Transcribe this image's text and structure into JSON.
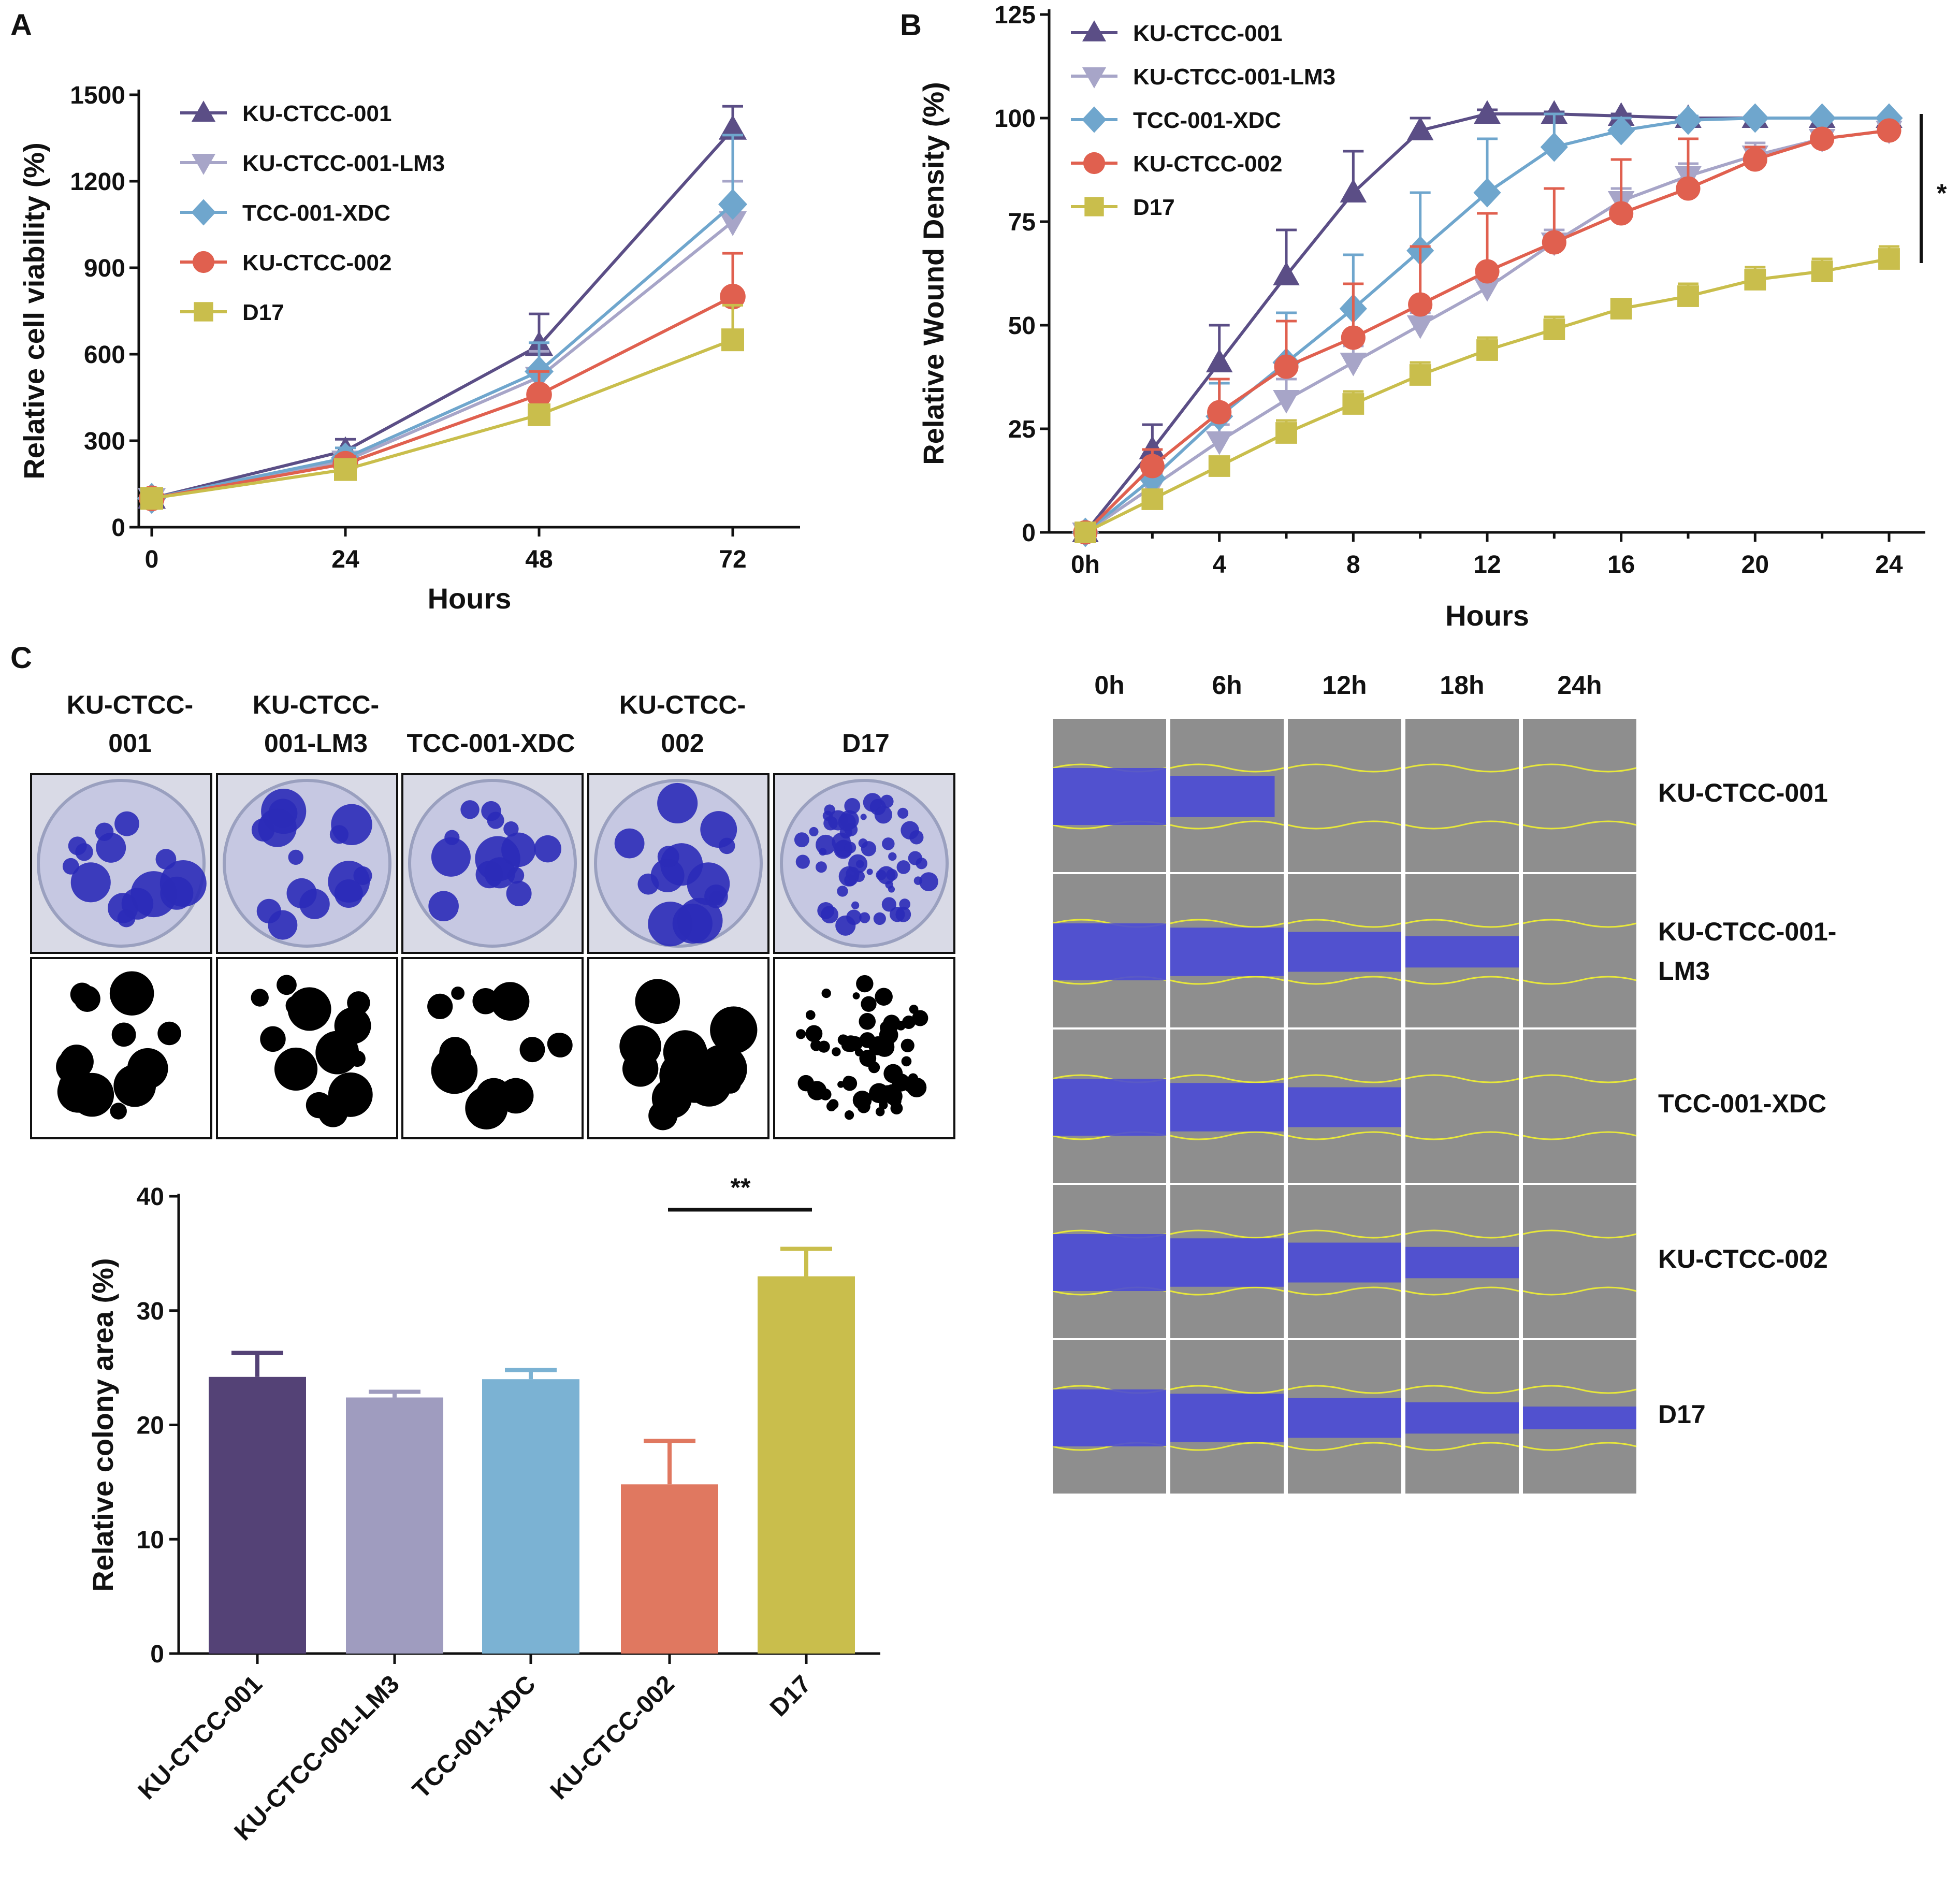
{
  "panels": {
    "A": "A",
    "B": "B",
    "C": "C"
  },
  "chart_data": [
    {
      "id": "A",
      "type": "line",
      "xlabel": "Hours",
      "ylabel": "Relative cell viability (%)",
      "x": [
        0,
        24,
        48,
        72
      ],
      "xticks": [
        "0",
        "24",
        "48",
        "72"
      ],
      "yticks": [
        "0",
        "300",
        "600",
        "900",
        "1200",
        "1500"
      ],
      "ylim": [
        0,
        1500
      ],
      "series": [
        {
          "name": "KU-CTCC-001",
          "marker": "triangle-up",
          "color": "#5b4e86",
          "values": [
            100,
            265,
            630,
            1380
          ],
          "errors": [
            0,
            40,
            110,
            80
          ]
        },
        {
          "name": "KU-CTCC-001-LM3",
          "marker": "triangle-down",
          "color": "#a7a5c8",
          "values": [
            100,
            230,
            520,
            1060
          ],
          "errors": [
            0,
            30,
            90,
            140
          ]
        },
        {
          "name": "TCC-001-XDC",
          "marker": "diamond",
          "color": "#6fa6cd",
          "values": [
            100,
            240,
            540,
            1120
          ],
          "errors": [
            0,
            35,
            100,
            240
          ]
        },
        {
          "name": "KU-CTCC-002",
          "marker": "circle",
          "color": "#e0604f",
          "values": [
            100,
            220,
            460,
            800
          ],
          "errors": [
            0,
            25,
            80,
            150
          ]
        },
        {
          "name": "D17",
          "marker": "square",
          "color": "#c9be4c",
          "values": [
            100,
            200,
            390,
            650
          ],
          "errors": [
            0,
            20,
            30,
            120
          ]
        }
      ]
    },
    {
      "id": "B",
      "type": "line",
      "xlabel": "Hours",
      "ylabel": "Relative Wound Density (%)",
      "x": [
        0,
        2,
        4,
        6,
        8,
        10,
        12,
        14,
        16,
        18,
        20,
        22,
        24
      ],
      "xticks": [
        "0h",
        "4",
        "8",
        "12",
        "16",
        "20",
        "24"
      ],
      "xtick_values": [
        0,
        4,
        8,
        12,
        16,
        20,
        24
      ],
      "yticks": [
        "0",
        "25",
        "50",
        "75",
        "100",
        "125"
      ],
      "ylim": [
        0,
        125
      ],
      "significance": "*",
      "series": [
        {
          "name": "KU-CTCC-001",
          "marker": "triangle-up",
          "color": "#5b4e86",
          "values": [
            0,
            20,
            41,
            62,
            82,
            97,
            101,
            101,
            100.5,
            100,
            100,
            100,
            100
          ],
          "errors": [
            0,
            6,
            9,
            11,
            10,
            3,
            1,
            0.5,
            0.5,
            0.5,
            0,
            0,
            0
          ]
        },
        {
          "name": "KU-CTCC-001-LM3",
          "marker": "triangle-down",
          "color": "#a7a5c8",
          "values": [
            0,
            11,
            22,
            32,
            41,
            50,
            59,
            70,
            80,
            86,
            91,
            95,
            97
          ],
          "errors": [
            0,
            3,
            4,
            5,
            4,
            3,
            3,
            3,
            3,
            3,
            3,
            2,
            2
          ]
        },
        {
          "name": "TCC-001-XDC",
          "marker": "diamond",
          "color": "#6fa6cd",
          "values": [
            0,
            13,
            28,
            41,
            54,
            68,
            82,
            93,
            97,
            99.5,
            100,
            100,
            100
          ],
          "errors": [
            0,
            4,
            8,
            12,
            13,
            14,
            13,
            8,
            3,
            1,
            0.5,
            0,
            0
          ]
        },
        {
          "name": "KU-CTCC-002",
          "marker": "circle",
          "color": "#e0604f",
          "values": [
            0,
            16,
            29,
            40,
            47,
            55,
            63,
            70,
            77,
            83,
            90,
            95,
            97
          ],
          "errors": [
            0,
            4,
            8,
            11,
            13,
            14,
            14,
            13,
            13,
            12,
            3,
            1,
            1
          ]
        },
        {
          "name": "D17",
          "marker": "square",
          "color": "#c9be4c",
          "values": [
            0,
            8,
            16,
            24,
            31,
            38,
            44,
            49,
            54,
            57,
            61,
            63,
            66
          ],
          "errors": [
            0,
            2,
            2,
            3,
            3,
            3,
            3,
            3,
            2,
            3,
            3,
            3,
            3
          ]
        }
      ]
    },
    {
      "id": "C-bar",
      "type": "bar",
      "ylabel": "Relative colony area (%)",
      "categories": [
        "KU-CTCC-001",
        "KU-CTCC-001-LM3",
        "TCC-001-XDC",
        "KU-CTCC-002",
        "D17"
      ],
      "values": [
        24.2,
        22.4,
        24.0,
        14.8,
        33.0
      ],
      "errors": [
        2.1,
        0.5,
        0.8,
        3.8,
        2.4
      ],
      "colors": [
        "#544276",
        "#9f9cbf",
        "#7bb2d3",
        "#e07860",
        "#c9be4c"
      ],
      "yticks": [
        "0",
        "10",
        "20",
        "30",
        "40"
      ],
      "ylim": [
        0,
        40
      ],
      "significance": "**",
      "significance_between": [
        "KU-CTCC-002",
        "D17"
      ]
    }
  ],
  "colony_labels": [
    "KU-CTCC-\n001",
    "KU-CTCC-\n001-LM3",
    "TCC-001-XDC",
    "KU-CTCC-\n002",
    "D17"
  ],
  "wound_time_labels": [
    "0h",
    "6h",
    "12h",
    "18h",
    "24h"
  ],
  "wound_row_labels": [
    "KU-CTCC-001",
    "KU-CTCC-001-\nLM3",
    "TCC-001-XDC",
    "KU-CTCC-002",
    "D17"
  ],
  "wound_open_fraction": [
    [
      1.0,
      0.85,
      0,
      0,
      0
    ],
    [
      1.0,
      1.0,
      1.0,
      1.0,
      0
    ],
    [
      1.0,
      1.0,
      1.0,
      0,
      0
    ],
    [
      1.0,
      1.0,
      1.0,
      1.0,
      0
    ],
    [
      1.0,
      1.0,
      1.0,
      1.0,
      1.0
    ]
  ]
}
